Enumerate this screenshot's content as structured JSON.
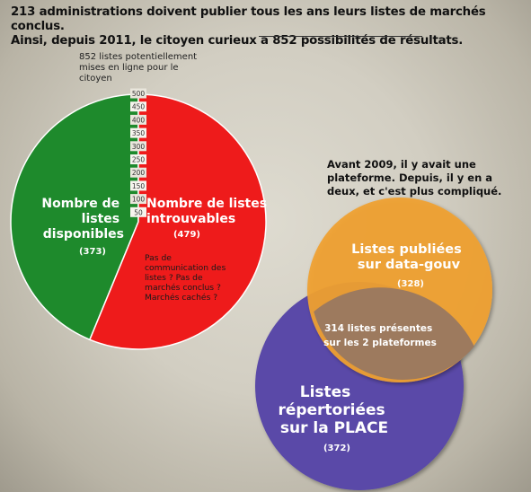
{
  "header": {
    "line1": "213 administrations doivent publier tous les ans leurs listes de marchés conclus.",
    "line2": "Ainsi, depuis 2011, le citoyen curieux a 852 possibilités de résultats."
  },
  "colors": {
    "available": "#1e8a2c",
    "unfindable": "#ee1b1b",
    "data_gouv": "#f0a030",
    "place": "#5a4aa8"
  },
  "chart_data": [
    {
      "type": "pie",
      "title": "",
      "annotation": [
        "852 listes potentiellement",
        "mises en ligne pour le",
        "citoyen"
      ],
      "total": 852,
      "scale_ticks": [
        500,
        450,
        400,
        350,
        300,
        250,
        200,
        150,
        100,
        50
      ],
      "slices": [
        {
          "label_lines": [
            "Nombre de",
            "listes",
            "disponibles"
          ],
          "value": 373,
          "value_label": "(373)",
          "color": "#1e8a2c"
        },
        {
          "label_lines": [
            "Nombre de listes",
            "introuvables"
          ],
          "value": 479,
          "value_label": "(479)",
          "color": "#ee1b1b",
          "note_lines": [
            "Pas de",
            "communication des",
            "listes ? Pas de",
            "marchés conclus ?",
            "Marchés cachés ?"
          ]
        }
      ]
    },
    {
      "type": "venn",
      "annotation": [
        "Avant 2009, il y avait une",
        "plateforme. Depuis, il y en a",
        "deux, et c'est plus compliqué."
      ],
      "sets": [
        {
          "label_lines": [
            "Listes publiées",
            "sur data-gouv"
          ],
          "value": 328,
          "value_label": "(328)",
          "color": "#f0a030"
        },
        {
          "label_lines": [
            "Listes",
            "répertoriées",
            "sur la PLACE"
          ],
          "value": 372,
          "value_label": "(372)",
          "color": "#5a4aa8"
        }
      ],
      "intersection": {
        "label_lines": [
          "314 listes présentes",
          "sur les 2 plateformes"
        ],
        "value": 314
      }
    }
  ]
}
